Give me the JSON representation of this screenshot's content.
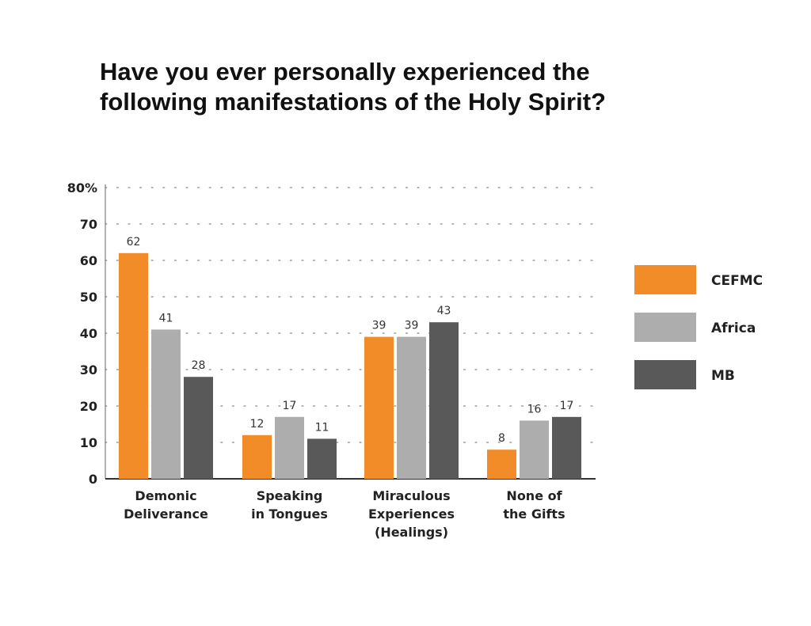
{
  "title_lines": [
    "Have you ever personally experienced the",
    "following manifestations of the Holy Spirit?"
  ],
  "chart_data": {
    "type": "bar",
    "title": "Have you ever personally experienced the following manifestations of the Holy Spirit?",
    "categories": [
      [
        "Demonic",
        "Deliverance"
      ],
      [
        "Speaking",
        "in Tongues"
      ],
      [
        "Miraculous",
        "Experiences",
        "(Healings)"
      ],
      [
        "None of",
        "the Gifts"
      ]
    ],
    "series": [
      {
        "name": "CEFMC",
        "color": "#F28C28",
        "values": [
          62,
          12,
          39,
          8
        ]
      },
      {
        "name": "Africa",
        "color": "#ADADAD",
        "values": [
          41,
          17,
          39,
          16
        ]
      },
      {
        "name": "MB",
        "color": "#595959",
        "values": [
          28,
          11,
          43,
          17
        ]
      }
    ],
    "yticks": [
      "80%",
      "70",
      "60",
      "50",
      "40",
      "30",
      "20",
      "10",
      "0"
    ],
    "ylim": [
      0,
      80
    ],
    "grid": "dotted",
    "legend": "right",
    "xlabel": "",
    "ylabel": ""
  }
}
